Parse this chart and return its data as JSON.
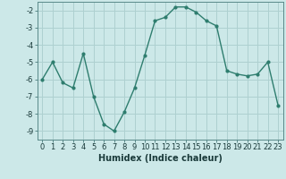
{
  "x": [
    0,
    1,
    2,
    3,
    4,
    5,
    6,
    7,
    8,
    9,
    10,
    11,
    12,
    13,
    14,
    15,
    16,
    17,
    18,
    19,
    20,
    21,
    22,
    23
  ],
  "y": [
    -6.0,
    -5.0,
    -6.2,
    -6.5,
    -4.5,
    -7.0,
    -8.6,
    -9.0,
    -7.9,
    -6.5,
    -4.6,
    -2.6,
    -2.4,
    -1.8,
    -1.8,
    -2.1,
    -2.6,
    -2.9,
    -5.5,
    -5.7,
    -5.8,
    -5.7,
    -5.0,
    -7.5
  ],
  "line_color": "#2e7d6e",
  "marker": "o",
  "markersize": 2,
  "linewidth": 1.0,
  "bg_color": "#cce8e8",
  "grid_color": "#aed0d0",
  "xlabel": "Humidex (Indice chaleur)",
  "xlim": [
    -0.5,
    23.5
  ],
  "ylim": [
    -9.5,
    -1.5
  ],
  "xtick_labels": [
    "0",
    "1",
    "2",
    "3",
    "4",
    "5",
    "6",
    "7",
    "8",
    "9",
    "10",
    "11",
    "12",
    "13",
    "14",
    "15",
    "16",
    "17",
    "18",
    "19",
    "20",
    "21",
    "22",
    "23"
  ],
  "yticks": [
    -9,
    -8,
    -7,
    -6,
    -5,
    -4,
    -3,
    -2
  ],
  "xlabel_fontsize": 7,
  "tick_fontsize": 6
}
